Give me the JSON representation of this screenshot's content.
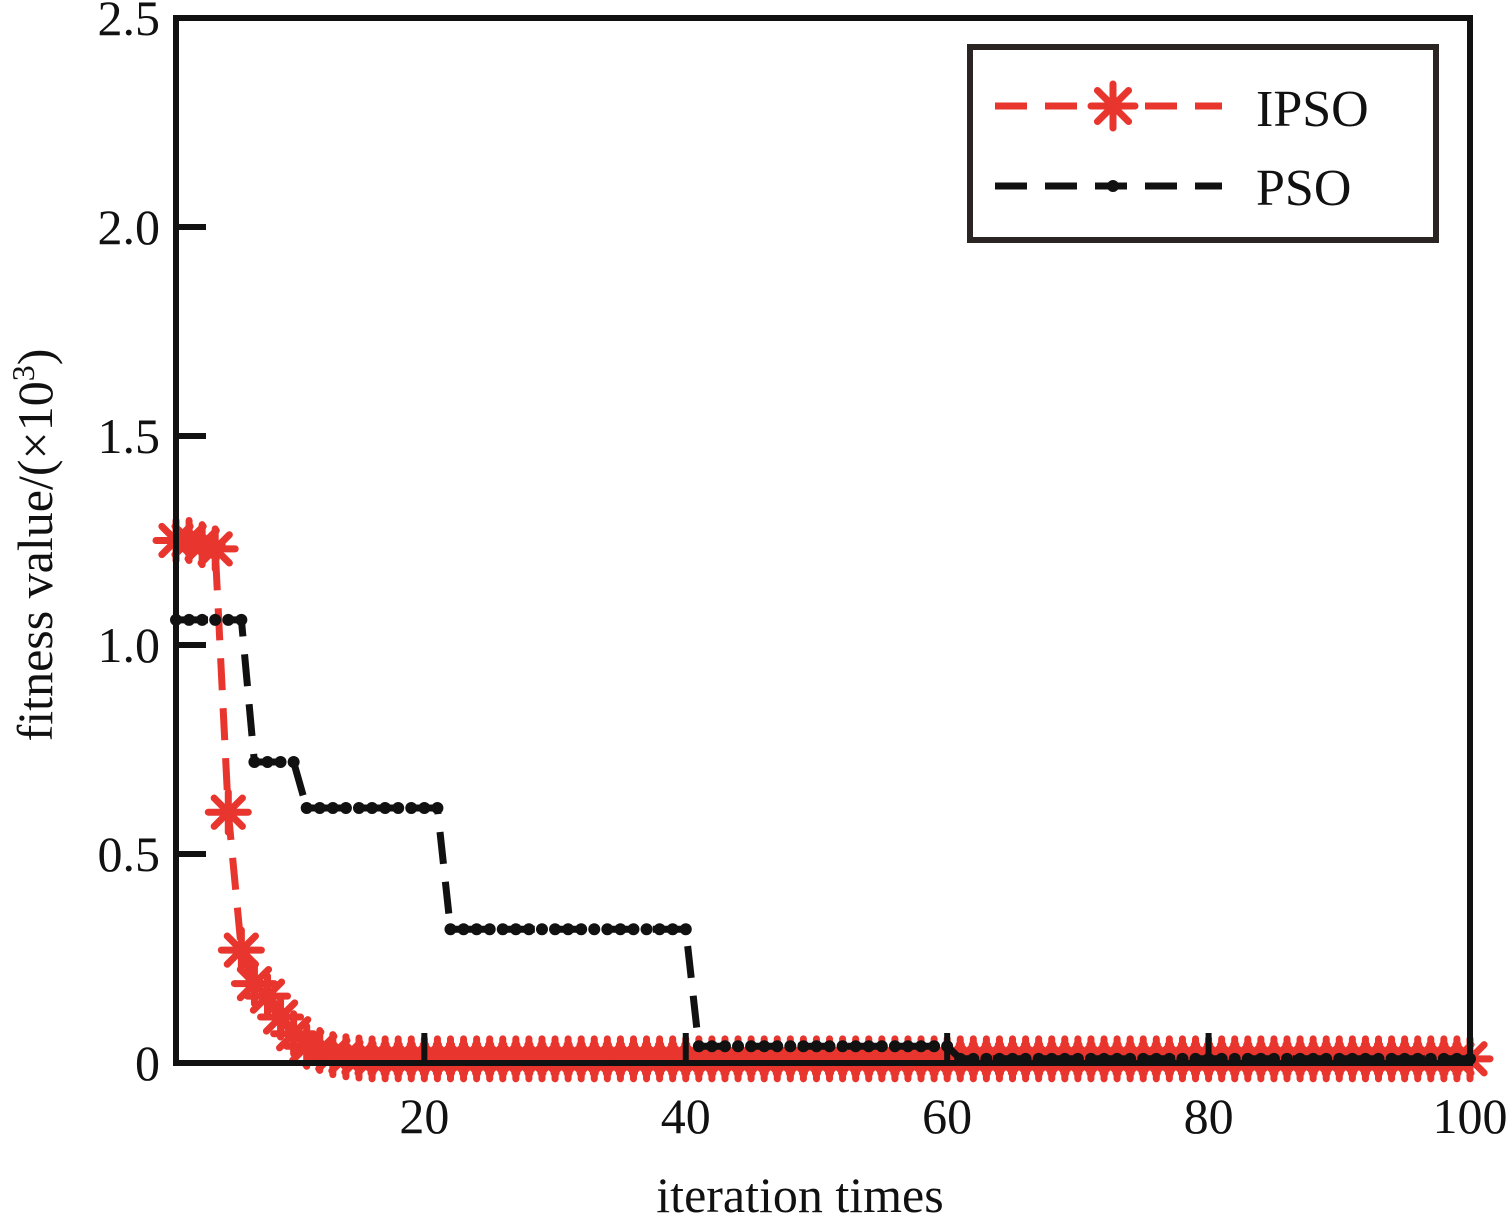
{
  "chart_data": {
    "type": "line",
    "title": "",
    "xlabel": "iteration times",
    "ylabel": "fitness value/(×10",
    "ylabel_superscript": "3",
    "ylabel_close": ")",
    "xlim": [
      1,
      100
    ],
    "ylim": [
      0,
      2.5
    ],
    "xticks": [
      20,
      40,
      60,
      80,
      100
    ],
    "yticks": [
      0,
      0.5,
      1.0,
      1.5,
      2.0,
      2.5
    ],
    "xtick_labels": [
      "20",
      "40",
      "60",
      "80",
      "100"
    ],
    "ytick_labels": [
      "0",
      "0.5",
      "1.0",
      "1.5",
      "2.0",
      "2.5"
    ],
    "grid": false,
    "legend_position": "top-right",
    "series": [
      {
        "name": "IPSO",
        "color": "#e8352e",
        "line_style": "dashed",
        "marker": "asterisk",
        "x": [
          1,
          2,
          3,
          4,
          5,
          6,
          7,
          8,
          9,
          10,
          11,
          12,
          13,
          14,
          15,
          16,
          17,
          18,
          19,
          20,
          21,
          22,
          23,
          24,
          25,
          26,
          27,
          28,
          29,
          30,
          31,
          32,
          33,
          34,
          35,
          36,
          37,
          38,
          39,
          40,
          41,
          42,
          43,
          44,
          45,
          46,
          47,
          48,
          49,
          50,
          51,
          52,
          53,
          54,
          55,
          56,
          57,
          58,
          59,
          60,
          61,
          62,
          63,
          64,
          65,
          66,
          67,
          68,
          69,
          70,
          71,
          72,
          73,
          74,
          75,
          76,
          77,
          78,
          79,
          80,
          81,
          82,
          83,
          84,
          85,
          86,
          87,
          88,
          89,
          90,
          91,
          92,
          93,
          94,
          95,
          96,
          97,
          98,
          99,
          100
        ],
        "values": [
          1.25,
          1.25,
          1.24,
          1.23,
          0.6,
          0.27,
          0.19,
          0.16,
          0.11,
          0.07,
          0.04,
          0.03,
          0.02,
          0.015,
          0.012,
          0.01,
          0.01,
          0.01,
          0.01,
          0.01,
          0.01,
          0.01,
          0.01,
          0.01,
          0.01,
          0.01,
          0.01,
          0.01,
          0.01,
          0.01,
          0.01,
          0.01,
          0.01,
          0.01,
          0.01,
          0.01,
          0.01,
          0.01,
          0.01,
          0.01,
          0.01,
          0.01,
          0.01,
          0.01,
          0.01,
          0.01,
          0.01,
          0.01,
          0.01,
          0.01,
          0.01,
          0.01,
          0.01,
          0.01,
          0.01,
          0.01,
          0.01,
          0.01,
          0.01,
          0.01,
          0.01,
          0.01,
          0.01,
          0.01,
          0.01,
          0.01,
          0.01,
          0.01,
          0.01,
          0.01,
          0.01,
          0.01,
          0.01,
          0.01,
          0.01,
          0.01,
          0.01,
          0.01,
          0.01,
          0.01,
          0.01,
          0.01,
          0.01,
          0.01,
          0.01,
          0.01,
          0.01,
          0.01,
          0.01,
          0.01,
          0.01,
          0.01,
          0.01,
          0.01,
          0.01,
          0.01,
          0.01,
          0.01,
          0.01,
          0.01
        ]
      },
      {
        "name": "PSO",
        "color": "#111111",
        "line_style": "dashed",
        "marker": "dot",
        "x": [
          1,
          2,
          3,
          4,
          5,
          6,
          7,
          8,
          9,
          10,
          11,
          12,
          13,
          14,
          15,
          16,
          17,
          18,
          19,
          20,
          21,
          22,
          23,
          24,
          25,
          26,
          27,
          28,
          29,
          30,
          31,
          32,
          33,
          34,
          35,
          36,
          37,
          38,
          39,
          40,
          41,
          42,
          43,
          44,
          45,
          46,
          47,
          48,
          49,
          50,
          51,
          52,
          53,
          54,
          55,
          56,
          57,
          58,
          59,
          60,
          61,
          62,
          63,
          64,
          65,
          66,
          67,
          68,
          69,
          70,
          71,
          72,
          73,
          74,
          75,
          76,
          77,
          78,
          79,
          80,
          81,
          82,
          83,
          84,
          85,
          86,
          87,
          88,
          89,
          90,
          91,
          92,
          93,
          94,
          95,
          96,
          97,
          98,
          99,
          100
        ],
        "values": [
          1.06,
          1.06,
          1.06,
          1.06,
          1.06,
          1.06,
          0.72,
          0.72,
          0.72,
          0.72,
          0.61,
          0.61,
          0.61,
          0.61,
          0.61,
          0.61,
          0.61,
          0.61,
          0.61,
          0.61,
          0.61,
          0.32,
          0.32,
          0.32,
          0.32,
          0.32,
          0.32,
          0.32,
          0.32,
          0.32,
          0.32,
          0.32,
          0.32,
          0.32,
          0.32,
          0.32,
          0.32,
          0.32,
          0.32,
          0.32,
          0.04,
          0.04,
          0.04,
          0.04,
          0.04,
          0.04,
          0.04,
          0.04,
          0.04,
          0.04,
          0.04,
          0.04,
          0.04,
          0.04,
          0.04,
          0.04,
          0.04,
          0.04,
          0.04,
          0.04,
          0.01,
          0.01,
          0.01,
          0.01,
          0.01,
          0.01,
          0.01,
          0.01,
          0.01,
          0.01,
          0.01,
          0.01,
          0.01,
          0.01,
          0.01,
          0.01,
          0.01,
          0.01,
          0.01,
          0.01,
          0.01,
          0.01,
          0.01,
          0.01,
          0.01,
          0.01,
          0.01,
          0.01,
          0.01,
          0.01,
          0.01,
          0.01,
          0.01,
          0.01,
          0.01,
          0.01,
          0.01,
          0.01,
          0.01,
          0.01
        ]
      }
    ]
  }
}
